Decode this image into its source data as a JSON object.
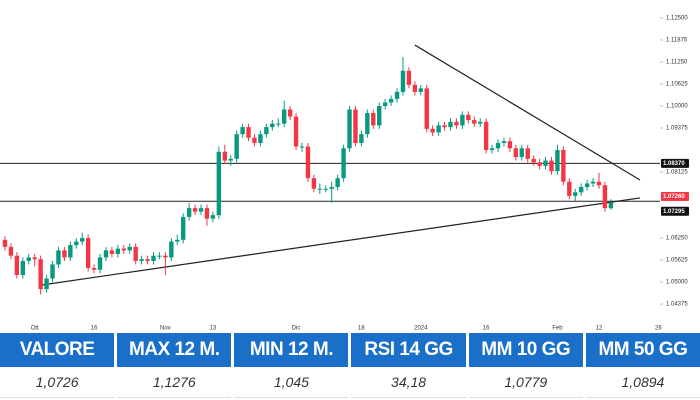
{
  "chart_data": {
    "type": "candlestick",
    "categories": [
      null,
      null,
      null,
      null,
      null,
      "Ott",
      null,
      null,
      null,
      null,
      null,
      null,
      null,
      null,
      null,
      "16",
      null,
      null,
      null,
      null,
      null,
      null,
      null,
      null,
      null,
      null,
      null,
      "Nov",
      null,
      null,
      null,
      null,
      null,
      null,
      null,
      "13",
      null,
      null,
      null,
      null,
      null,
      null,
      null,
      null,
      null,
      null,
      null,
      null,
      null,
      "Dic",
      null,
      null,
      null,
      null,
      null,
      null,
      null,
      null,
      null,
      null,
      "18",
      null,
      null,
      null,
      null,
      null,
      null,
      null,
      null,
      null,
      "2024",
      null,
      null,
      null,
      null,
      null,
      null,
      null,
      null,
      null,
      null,
      "16",
      null,
      null,
      null,
      null,
      null,
      null,
      null,
      null,
      null,
      null,
      null,
      "Feb",
      null,
      null,
      null,
      null,
      null,
      null,
      "12",
      null,
      null,
      null,
      null,
      null,
      null,
      null,
      null,
      null,
      "26"
    ],
    "open": [
      1.062,
      1.06,
      1.0575,
      1.052,
      1.056,
      1.057,
      1.0565,
      1.048,
      1.051,
      1.055,
      1.059,
      1.057,
      1.0605,
      1.0615,
      1.0625,
      1.054,
      1.0535,
      1.057,
      1.059,
      1.058,
      1.0595,
      1.059,
      1.06,
      1.056,
      1.0565,
      1.056,
      1.0575,
      1.0575,
      1.057,
      1.0615,
      1.062,
      1.0685,
      1.071,
      1.07,
      1.071,
      1.068,
      1.069,
      1.087,
      1.0845,
      1.085,
      1.092,
      1.094,
      1.091,
      1.0895,
      1.092,
      1.094,
      1.095,
      1.095,
      1.099,
      1.097,
      1.0885,
      1.0885,
      1.0795,
      1.0765,
      1.0765,
      1.0765,
      1.077,
      1.0795,
      1.088,
      1.099,
      1.0895,
      1.092,
      1.098,
      1.0945,
      1.1,
      1.101,
      1.102,
      1.104,
      1.11,
      1.106,
      1.104,
      1.105,
      1.0935,
      1.0925,
      1.0945,
      1.094,
      1.0955,
      1.0945,
      1.0975,
      1.096,
      1.095,
      1.0955,
      1.0875,
      1.088,
      1.0895,
      1.09,
      1.088,
      1.0855,
      1.088,
      1.085,
      1.084,
      1.083,
      1.0845,
      1.0815,
      1.0875,
      1.0785,
      1.0745,
      1.0755,
      1.077,
      1.078,
      1.0785,
      1.0775,
      1.071,
      null,
      null,
      null,
      null,
      null,
      null,
      null,
      null
    ],
    "high": [
      1.063,
      1.061,
      1.0585,
      1.057,
      1.058,
      1.058,
      1.0575,
      1.052,
      1.056,
      1.06,
      1.06,
      1.0615,
      1.0625,
      1.064,
      1.0635,
      1.055,
      1.058,
      1.06,
      1.06,
      1.0605,
      1.0605,
      1.061,
      1.061,
      1.0575,
      1.0575,
      1.0585,
      1.0585,
      1.0585,
      1.0625,
      1.0635,
      1.0695,
      1.0725,
      1.072,
      1.072,
      1.072,
      1.07,
      1.0885,
      1.089,
      1.086,
      1.093,
      1.095,
      1.095,
      1.092,
      1.093,
      1.095,
      1.096,
      1.0965,
      1.1015,
      1.1,
      1.098,
      1.0895,
      1.0895,
      1.0805,
      1.078,
      1.0775,
      1.0785,
      1.0805,
      1.089,
      1.1,
      1.1,
      1.093,
      1.099,
      1.099,
      1.101,
      1.102,
      1.103,
      1.105,
      1.1139,
      1.111,
      1.107,
      1.106,
      1.106,
      1.0945,
      1.0955,
      1.0955,
      1.0965,
      1.0965,
      1.0985,
      1.0985,
      1.097,
      1.0965,
      1.0965,
      1.089,
      1.0905,
      1.091,
      1.091,
      1.089,
      1.089,
      1.089,
      1.086,
      1.085,
      1.0855,
      1.0855,
      1.089,
      1.0885,
      1.0795,
      1.0765,
      1.078,
      1.079,
      1.0795,
      1.081,
      1.0785,
      1.0735,
      null,
      null,
      null,
      null,
      null,
      null,
      null,
      null
    ],
    "low": [
      1.059,
      1.0565,
      1.051,
      1.051,
      1.055,
      1.0545,
      1.0465,
      1.047,
      1.05,
      1.054,
      1.056,
      1.056,
      1.0595,
      1.0605,
      1.053,
      1.0525,
      1.0525,
      1.056,
      1.057,
      1.057,
      1.058,
      1.058,
      1.055,
      1.055,
      1.055,
      1.055,
      1.0565,
      1.052,
      1.056,
      1.0605,
      1.061,
      1.0675,
      1.069,
      1.069,
      1.066,
      1.067,
      1.068,
      1.0835,
      1.083,
      1.084,
      1.091,
      1.09,
      1.0885,
      1.0885,
      1.091,
      1.093,
      1.094,
      1.094,
      1.096,
      1.0875,
      1.087,
      1.0785,
      1.0755,
      1.075,
      1.0755,
      1.0725,
      1.076,
      1.0785,
      1.087,
      1.0885,
      1.0885,
      1.091,
      1.0935,
      1.0935,
      1.099,
      1.1,
      1.101,
      1.103,
      1.105,
      1.103,
      1.103,
      1.0925,
      1.0915,
      1.0915,
      1.093,
      1.093,
      1.0935,
      1.0935,
      1.095,
      1.094,
      1.094,
      1.0865,
      1.0865,
      1.087,
      1.0885,
      1.087,
      1.0845,
      1.0845,
      1.084,
      1.083,
      1.082,
      1.082,
      1.0805,
      1.0805,
      1.0775,
      1.0735,
      1.073,
      1.0745,
      1.076,
      1.077,
      1.0765,
      1.07,
      1.0705,
      null,
      null,
      null,
      null,
      null,
      null,
      null,
      null
    ],
    "close": [
      1.06,
      1.0575,
      1.052,
      1.056,
      1.057,
      1.0565,
      1.048,
      1.051,
      1.055,
      1.059,
      1.057,
      1.0605,
      1.0615,
      1.0625,
      1.054,
      1.0535,
      1.057,
      1.059,
      1.058,
      1.0595,
      1.059,
      1.06,
      1.056,
      1.0565,
      1.056,
      1.0575,
      1.0575,
      1.057,
      1.0615,
      1.062,
      1.0685,
      1.071,
      1.07,
      1.071,
      1.068,
      1.069,
      1.087,
      1.0845,
      1.085,
      1.092,
      1.094,
      1.091,
      1.0895,
      1.092,
      1.094,
      1.095,
      1.095,
      1.099,
      1.097,
      1.0885,
      1.0885,
      1.0795,
      1.0765,
      1.0765,
      1.0765,
      1.077,
      1.0795,
      1.088,
      1.099,
      1.0895,
      1.092,
      1.098,
      1.0945,
      1.1,
      1.101,
      1.102,
      1.104,
      1.11,
      1.106,
      1.104,
      1.105,
      1.0935,
      1.0925,
      1.0945,
      1.094,
      1.0955,
      1.0945,
      1.0975,
      1.096,
      1.095,
      1.0955,
      1.0875,
      1.088,
      1.0895,
      1.09,
      1.088,
      1.0855,
      1.088,
      1.085,
      1.084,
      1.083,
      1.0845,
      1.0815,
      1.0875,
      1.0785,
      1.0745,
      1.0755,
      1.077,
      1.078,
      1.0785,
      1.0775,
      1.071,
      1.0726,
      null,
      null,
      null,
      null,
      null,
      null,
      null,
      null
    ],
    "up_color": "#089981",
    "down_color": "#f23645",
    "ylim": [
      1.0398,
      1.1301
    ],
    "yticks": [
      {
        "value": 1.125,
        "label": "1.12500"
      },
      {
        "value": 1.11875,
        "label": "1.11875"
      },
      {
        "value": 1.1125,
        "label": "1.11250"
      },
      {
        "value": 1.10625,
        "label": "1.10625"
      },
      {
        "value": 1.1,
        "label": "1.10000"
      },
      {
        "value": 1.09375,
        "label": "1.09375"
      },
      {
        "value": 1.08125,
        "label": "1.08125"
      },
      {
        "value": 1.0625,
        "label": "1.06250"
      },
      {
        "value": 1.05625,
        "label": "1.05625"
      },
      {
        "value": 1.05,
        "label": "1.05000"
      },
      {
        "value": 1.04375,
        "label": "1.04375"
      }
    ],
    "grid": false,
    "hlines": [
      {
        "value": 1.0837,
        "label": "1.08370"
      },
      {
        "value": 1.07295,
        "label": "1.07295"
      }
    ],
    "last_price": {
      "value": 1.0726,
      "label": "1.07260"
    },
    "trendlines": [
      {
        "from": [
          5.9,
          1.0491
        ],
        "to": [
          106.9,
          1.0739
        ]
      },
      {
        "from": [
          69,
          1.1173
        ],
        "to": [
          106.9,
          1.079
        ]
      }
    ]
  },
  "table": {
    "header": [
      "VALORE",
      "MAX 12 M.",
      "MIN 12 M.",
      "RSI 14 GG",
      "MM 10 GG",
      "MM 50 GG"
    ],
    "values": [
      "1,0726",
      "1,1276",
      "1,045",
      "34,18",
      "1,0779",
      "1,0894"
    ]
  }
}
